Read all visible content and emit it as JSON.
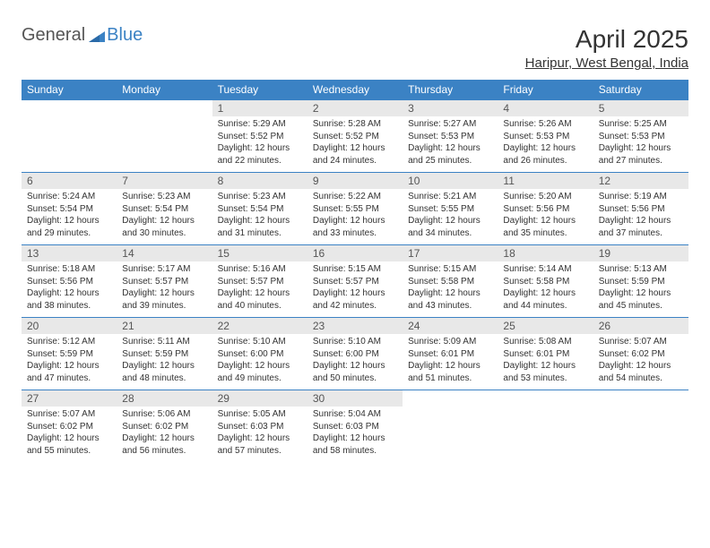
{
  "logo": {
    "general": "General",
    "blue": "Blue"
  },
  "title": "April 2025",
  "location": "Haripur, West Bengal, India",
  "colors": {
    "header_bg": "#3b82c4",
    "header_text": "#ffffff",
    "daynum_bg": "#e8e8e8",
    "row_border": "#3b82c4",
    "text": "#333333",
    "logo_gray": "#555555",
    "logo_blue": "#3b82c4"
  },
  "day_names": [
    "Sunday",
    "Monday",
    "Tuesday",
    "Wednesday",
    "Thursday",
    "Friday",
    "Saturday"
  ],
  "weeks": [
    [
      null,
      null,
      {
        "n": "1",
        "sr": "5:29 AM",
        "ss": "5:52 PM",
        "dl": "12 hours and 22 minutes."
      },
      {
        "n": "2",
        "sr": "5:28 AM",
        "ss": "5:52 PM",
        "dl": "12 hours and 24 minutes."
      },
      {
        "n": "3",
        "sr": "5:27 AM",
        "ss": "5:53 PM",
        "dl": "12 hours and 25 minutes."
      },
      {
        "n": "4",
        "sr": "5:26 AM",
        "ss": "5:53 PM",
        "dl": "12 hours and 26 minutes."
      },
      {
        "n": "5",
        "sr": "5:25 AM",
        "ss": "5:53 PM",
        "dl": "12 hours and 27 minutes."
      }
    ],
    [
      {
        "n": "6",
        "sr": "5:24 AM",
        "ss": "5:54 PM",
        "dl": "12 hours and 29 minutes."
      },
      {
        "n": "7",
        "sr": "5:23 AM",
        "ss": "5:54 PM",
        "dl": "12 hours and 30 minutes."
      },
      {
        "n": "8",
        "sr": "5:23 AM",
        "ss": "5:54 PM",
        "dl": "12 hours and 31 minutes."
      },
      {
        "n": "9",
        "sr": "5:22 AM",
        "ss": "5:55 PM",
        "dl": "12 hours and 33 minutes."
      },
      {
        "n": "10",
        "sr": "5:21 AM",
        "ss": "5:55 PM",
        "dl": "12 hours and 34 minutes."
      },
      {
        "n": "11",
        "sr": "5:20 AM",
        "ss": "5:56 PM",
        "dl": "12 hours and 35 minutes."
      },
      {
        "n": "12",
        "sr": "5:19 AM",
        "ss": "5:56 PM",
        "dl": "12 hours and 37 minutes."
      }
    ],
    [
      {
        "n": "13",
        "sr": "5:18 AM",
        "ss": "5:56 PM",
        "dl": "12 hours and 38 minutes."
      },
      {
        "n": "14",
        "sr": "5:17 AM",
        "ss": "5:57 PM",
        "dl": "12 hours and 39 minutes."
      },
      {
        "n": "15",
        "sr": "5:16 AM",
        "ss": "5:57 PM",
        "dl": "12 hours and 40 minutes."
      },
      {
        "n": "16",
        "sr": "5:15 AM",
        "ss": "5:57 PM",
        "dl": "12 hours and 42 minutes."
      },
      {
        "n": "17",
        "sr": "5:15 AM",
        "ss": "5:58 PM",
        "dl": "12 hours and 43 minutes."
      },
      {
        "n": "18",
        "sr": "5:14 AM",
        "ss": "5:58 PM",
        "dl": "12 hours and 44 minutes."
      },
      {
        "n": "19",
        "sr": "5:13 AM",
        "ss": "5:59 PM",
        "dl": "12 hours and 45 minutes."
      }
    ],
    [
      {
        "n": "20",
        "sr": "5:12 AM",
        "ss": "5:59 PM",
        "dl": "12 hours and 47 minutes."
      },
      {
        "n": "21",
        "sr": "5:11 AM",
        "ss": "5:59 PM",
        "dl": "12 hours and 48 minutes."
      },
      {
        "n": "22",
        "sr": "5:10 AM",
        "ss": "6:00 PM",
        "dl": "12 hours and 49 minutes."
      },
      {
        "n": "23",
        "sr": "5:10 AM",
        "ss": "6:00 PM",
        "dl": "12 hours and 50 minutes."
      },
      {
        "n": "24",
        "sr": "5:09 AM",
        "ss": "6:01 PM",
        "dl": "12 hours and 51 minutes."
      },
      {
        "n": "25",
        "sr": "5:08 AM",
        "ss": "6:01 PM",
        "dl": "12 hours and 53 minutes."
      },
      {
        "n": "26",
        "sr": "5:07 AM",
        "ss": "6:02 PM",
        "dl": "12 hours and 54 minutes."
      }
    ],
    [
      {
        "n": "27",
        "sr": "5:07 AM",
        "ss": "6:02 PM",
        "dl": "12 hours and 55 minutes."
      },
      {
        "n": "28",
        "sr": "5:06 AM",
        "ss": "6:02 PM",
        "dl": "12 hours and 56 minutes."
      },
      {
        "n": "29",
        "sr": "5:05 AM",
        "ss": "6:03 PM",
        "dl": "12 hours and 57 minutes."
      },
      {
        "n": "30",
        "sr": "5:04 AM",
        "ss": "6:03 PM",
        "dl": "12 hours and 58 minutes."
      },
      null,
      null,
      null
    ]
  ],
  "labels": {
    "sunrise": "Sunrise:",
    "sunset": "Sunset:",
    "daylight": "Daylight:"
  }
}
